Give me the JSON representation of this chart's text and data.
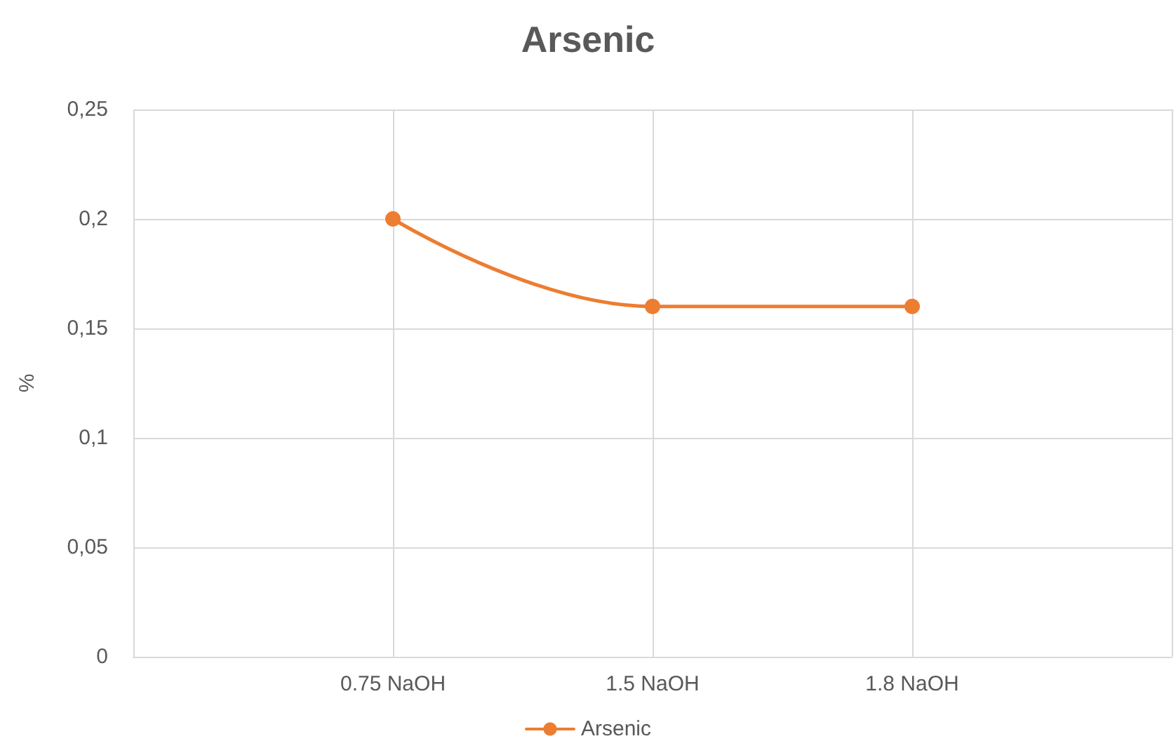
{
  "chart_data": {
    "type": "line",
    "title": "Arsenic",
    "ylabel": "%",
    "categories": [
      null,
      "0.75 NaOH",
      "1.5 NaOH",
      "1.8 NaOH",
      null
    ],
    "series": [
      {
        "name": "Arsenic",
        "color": "#ed7d31",
        "values": [
          null,
          0.2,
          0.16,
          0.16,
          null
        ]
      }
    ],
    "ylim": [
      0,
      0.25
    ],
    "yticks": [
      {
        "value": 0,
        "label": "0"
      },
      {
        "value": 0.05,
        "label": "0,05"
      },
      {
        "value": 0.1,
        "label": "0,1"
      },
      {
        "value": 0.15,
        "label": "0,15"
      },
      {
        "value": 0.2,
        "label": "0,2"
      },
      {
        "value": 0.25,
        "label": "0,25"
      }
    ],
    "grid": true,
    "legend": "bottom",
    "marker": "circle",
    "line_style": "solid"
  }
}
